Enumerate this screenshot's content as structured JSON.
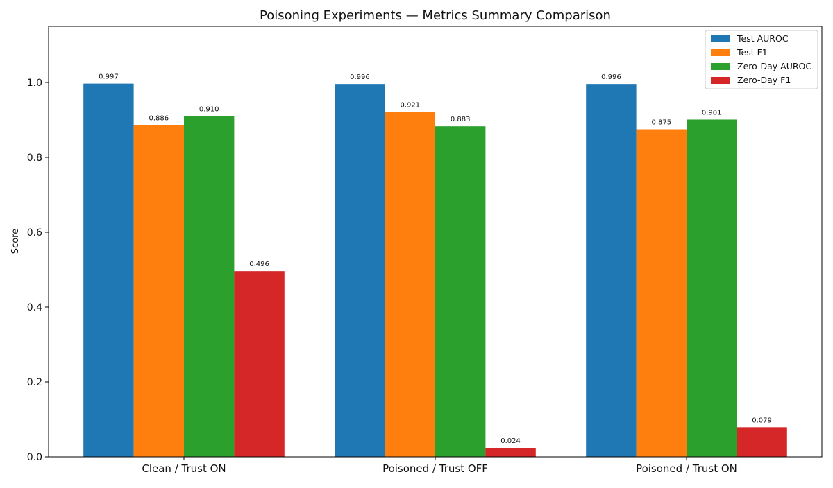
{
  "chart_data": {
    "type": "bar",
    "title": "Poisoning Experiments — Metrics Summary Comparison",
    "xlabel": "",
    "ylabel": "Score",
    "ylim": [
      0,
      1.15
    ],
    "yticks": [
      0.0,
      0.2,
      0.4,
      0.6,
      0.8,
      1.0
    ],
    "ytick_labels": [
      "0.0",
      "0.2",
      "0.4",
      "0.6",
      "0.8",
      "1.0"
    ],
    "grid": false,
    "legend_position": "top-right",
    "categories": [
      "Clean / Trust ON",
      "Poisoned / Trust OFF",
      "Poisoned / Trust ON"
    ],
    "series": [
      {
        "name": "Test AUROC",
        "color": "#1f77b4",
        "values": [
          0.997,
          0.996,
          0.996
        ],
        "labels": [
          "0.997",
          "0.996",
          "0.996"
        ]
      },
      {
        "name": "Test F1",
        "color": "#ff7f0e",
        "values": [
          0.886,
          0.921,
          0.875
        ],
        "labels": [
          "0.886",
          "0.921",
          "0.875"
        ]
      },
      {
        "name": "Zero-Day AUROC",
        "color": "#2ca02c",
        "values": [
          0.91,
          0.883,
          0.901
        ],
        "labels": [
          "0.910",
          "0.883",
          "0.901"
        ]
      },
      {
        "name": "Zero-Day F1",
        "color": "#d62728",
        "values": [
          0.496,
          0.024,
          0.079
        ],
        "labels": [
          "0.496",
          "0.024",
          "0.079"
        ]
      }
    ]
  }
}
